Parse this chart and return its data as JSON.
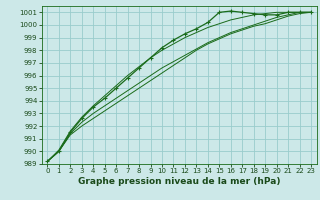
{
  "title": "Graphe pression niveau de la mer (hPa)",
  "background_color": "#cce8e8",
  "grid_color": "#99cccc",
  "line_color": "#1a6b1a",
  "spine_color": "#1a6b1a",
  "tick_color": "#1a4a1a",
  "xlabel_color": "#1a4a1a",
  "xlim": [
    -0.5,
    23.5
  ],
  "ylim": [
    989,
    1001.5
  ],
  "yticks": [
    989,
    990,
    991,
    992,
    993,
    994,
    995,
    996,
    997,
    998,
    999,
    1000,
    1001
  ],
  "xticks": [
    0,
    1,
    2,
    3,
    4,
    5,
    6,
    7,
    8,
    9,
    10,
    11,
    12,
    13,
    14,
    15,
    16,
    17,
    18,
    19,
    20,
    21,
    22,
    23
  ],
  "series1": [
    989.2,
    990.0,
    991.5,
    992.6,
    993.5,
    994.2,
    995.0,
    995.8,
    996.6,
    997.4,
    998.2,
    998.8,
    999.3,
    999.7,
    1000.2,
    1001.0,
    1001.1,
    1001.0,
    1000.9,
    1000.8,
    1000.8,
    1001.0,
    1001.0,
    1001.0
  ],
  "series2": [
    989.2,
    990.0,
    991.3,
    992.0,
    992.6,
    993.2,
    993.8,
    994.4,
    995.0,
    995.6,
    996.2,
    996.8,
    997.4,
    998.0,
    998.5,
    998.9,
    999.3,
    999.6,
    999.9,
    1000.1,
    1000.4,
    1000.7,
    1000.9,
    1001.0
  ],
  "series3": [
    989.2,
    990.0,
    991.4,
    992.3,
    993.0,
    993.6,
    994.2,
    994.8,
    995.4,
    996.0,
    996.6,
    997.1,
    997.6,
    998.1,
    998.6,
    999.0,
    999.4,
    999.7,
    1000.0,
    1000.3,
    1000.6,
    1000.8,
    1001.0,
    1001.0
  ],
  "series4": [
    989.2,
    990.1,
    991.6,
    992.7,
    993.6,
    994.4,
    995.2,
    996.0,
    996.7,
    997.4,
    998.0,
    998.5,
    999.0,
    999.4,
    999.8,
    1000.1,
    1000.4,
    1000.6,
    1000.8,
    1000.9,
    1001.0,
    1001.0,
    1001.0,
    1001.0
  ],
  "tick_fontsize": 5.0,
  "xlabel_fontsize": 6.5
}
